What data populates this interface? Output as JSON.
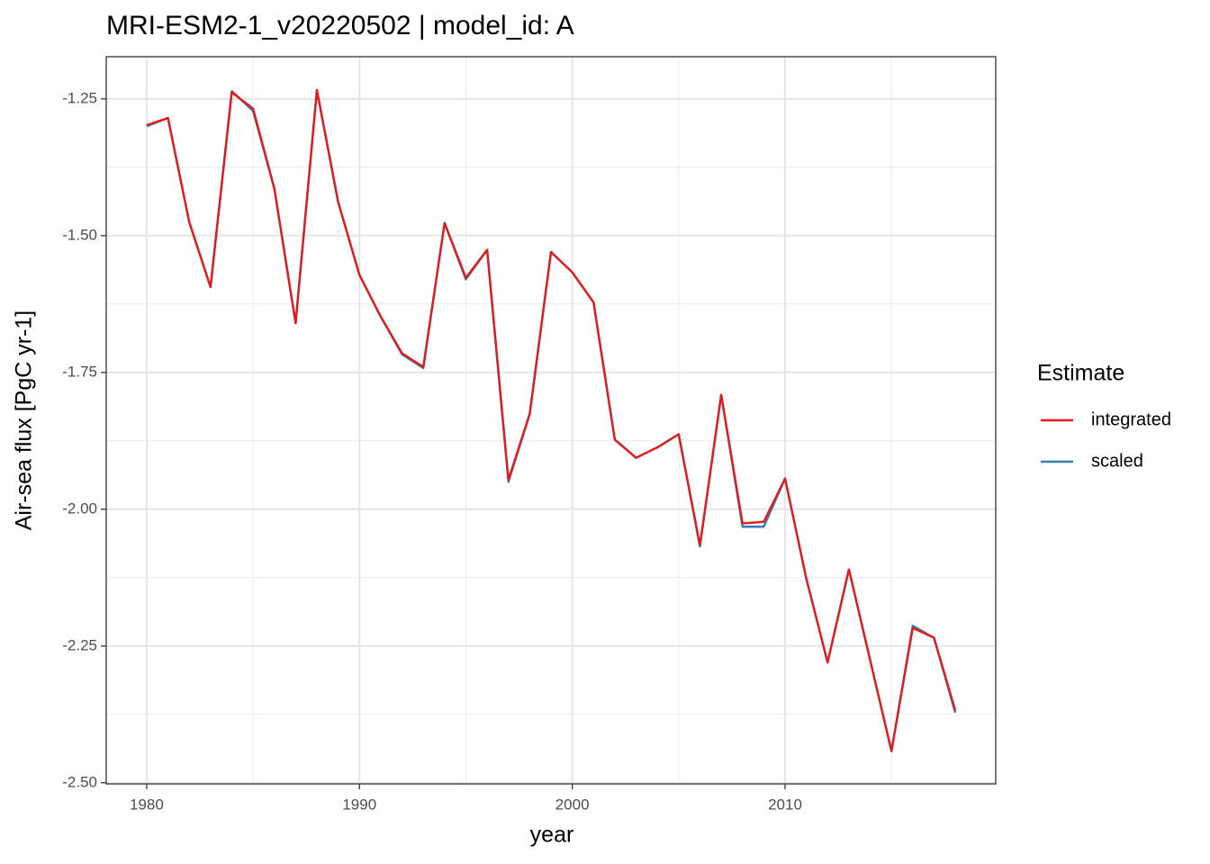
{
  "chart_data": {
    "type": "line",
    "title": "MRI-ESM2-1_v20220502 | model_id: A",
    "x_label": "year",
    "y_label": "Air-sea flux [PgC yr-1]",
    "legend_title": "Estimate",
    "legend_position": "right",
    "grid": true,
    "x": [
      1980,
      1981,
      1982,
      1983,
      1984,
      1985,
      1986,
      1987,
      1988,
      1989,
      1990,
      1991,
      1992,
      1993,
      1994,
      1995,
      1996,
      1997,
      1998,
      1999,
      2000,
      2001,
      2002,
      2003,
      2004,
      2005,
      2006,
      2007,
      2008,
      2009,
      2010,
      2011,
      2012,
      2013,
      2014,
      2015,
      2016,
      2017,
      2018
    ],
    "series": [
      {
        "name": "integrated",
        "color": "#e41a1c",
        "values": [
          -1.298,
          -1.285,
          -1.475,
          -1.594,
          -1.238,
          -1.268,
          -1.414,
          -1.66,
          -1.234,
          -1.439,
          -1.572,
          -1.648,
          -1.715,
          -1.74,
          -1.477,
          -1.577,
          -1.526,
          -1.946,
          -1.826,
          -1.53,
          -1.567,
          -1.622,
          -1.873,
          -1.906,
          -1.887,
          -1.863,
          -2.066,
          -1.791,
          -2.026,
          -2.023,
          -1.944,
          -2.127,
          -2.28,
          -2.11,
          -2.276,
          -2.442,
          -2.217,
          -2.235,
          -2.368
        ]
      },
      {
        "name": "scaled",
        "color": "#377eb8",
        "values": [
          -1.3,
          -1.285,
          -1.475,
          -1.594,
          -1.236,
          -1.272,
          -1.414,
          -1.66,
          -1.234,
          -1.439,
          -1.572,
          -1.648,
          -1.717,
          -1.742,
          -1.477,
          -1.58,
          -1.526,
          -1.95,
          -1.826,
          -1.53,
          -1.567,
          -1.622,
          -1.873,
          -1.906,
          -1.887,
          -1.863,
          -2.068,
          -1.791,
          -2.032,
          -2.032,
          -1.944,
          -2.127,
          -2.28,
          -2.11,
          -2.276,
          -2.442,
          -2.213,
          -2.235,
          -2.372
        ]
      }
    ],
    "xlim": [
      1978.1,
      2019.9
    ],
    "ylim": [
      -2.502,
      -1.173
    ],
    "xticks": [
      1980,
      1990,
      2000,
      2010
    ],
    "yticks": [
      {
        "value": -2.5,
        "label": "-2.50"
      },
      -2.25,
      {
        "value": -2.0,
        "label": "-2.00"
      },
      -1.75,
      {
        "value": -1.5,
        "label": "-1.50"
      },
      -1.25
    ],
    "x_minor_ticks": [
      1985,
      1995,
      2005,
      2015
    ],
    "y_minor_ticks": [
      -2.375,
      -2.125,
      -1.875,
      -1.625,
      -1.375
    ]
  }
}
